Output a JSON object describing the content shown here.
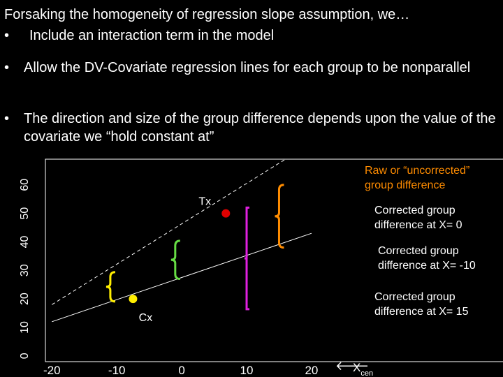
{
  "slide": {
    "title": "Forsaking the homogeneity of regression slope assumption, we…",
    "bullets": [
      "Include an interaction term in the model",
      "Allow the DV-Covariate regression lines for each group to be nonparallel",
      "The direction and size of the group difference depends upon the value of the covariate we “hold constant at”"
    ]
  },
  "chart_data": {
    "type": "line",
    "xlim": [
      -21,
      49.5
    ],
    "ylim": [
      -2,
      69
    ],
    "xticks": [
      -20,
      -10,
      0,
      10,
      20
    ],
    "yticks": [
      0,
      10,
      20,
      30,
      40,
      50,
      60
    ],
    "x_label": "X",
    "x_label_sub": "cen",
    "series": [
      {
        "color": "#ffffff",
        "dashed": true,
        "x": [
          -20,
          16
        ],
        "values": [
          18,
          69
        ]
      },
      {
        "color": "#ffffff",
        "dashed": false,
        "x": [
          -20,
          20
        ],
        "values": [
          12,
          43
        ]
      }
    ],
    "points": [
      {
        "label": "Tx",
        "x": 6.8,
        "y": 50,
        "color": "#e00000"
      },
      {
        "label": "Cx",
        "x": -7.5,
        "y": 20,
        "color": "#ffee00"
      }
    ],
    "brackets": [
      {
        "x": 15,
        "y0": 60,
        "y1": 38,
        "color": "#ff8c00",
        "shape": "brace"
      },
      {
        "x": 10,
        "y0": 52,
        "y1": 16.4,
        "color": "#e020e0",
        "shape": "bar"
      },
      {
        "x": -1,
        "y0": 40.4,
        "y1": 27,
        "color": "#66dd44",
        "shape": "brace"
      },
      {
        "x": -11,
        "y0": 29.4,
        "y1": 19.1,
        "color": "#ffee00",
        "shape": "brace"
      }
    ],
    "annotations": [
      {
        "text": "Raw or “uncorrected” group difference",
        "color": "#ff8c00"
      },
      {
        "text": "Corrected group difference at X= 0",
        "color": "#ffffff"
      },
      {
        "text": "Corrected group difference at X= -10",
        "color": "#ffffff"
      },
      {
        "text": "Corrected group difference at X= 15",
        "color": "#ffffff"
      }
    ]
  }
}
